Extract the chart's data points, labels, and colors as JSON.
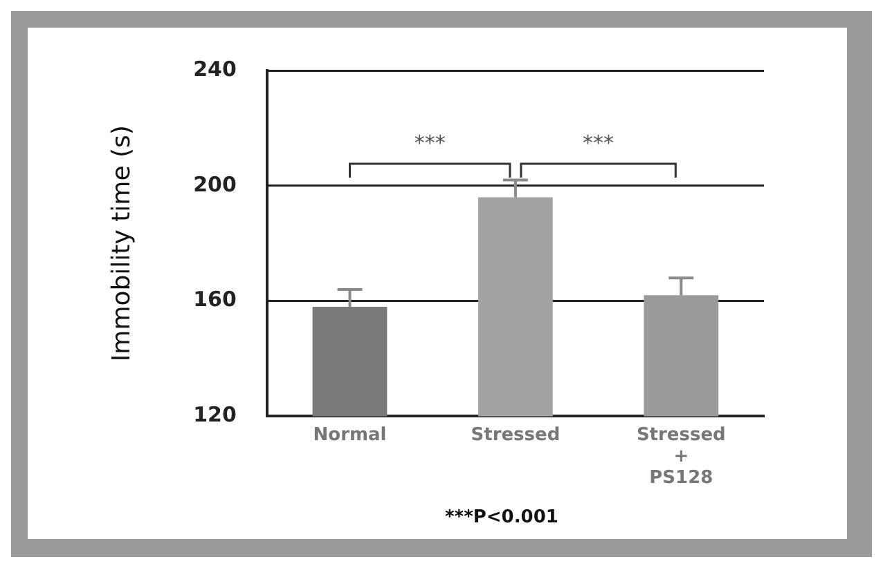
{
  "chart_data": {
    "type": "bar",
    "ylabel": "Immobility time (s)",
    "categories": [
      "Normal",
      "Stressed",
      "Stressed + PS128"
    ],
    "values": [
      158,
      196,
      162
    ],
    "colors": [
      "#7a7a7a",
      "#a3a3a3",
      "#9a9a9a"
    ],
    "errors": [
      6,
      6,
      6
    ],
    "ylim": [
      120,
      240
    ],
    "yticks": [
      120,
      160,
      200,
      240
    ],
    "grid": "y",
    "annotations": [
      "***",
      "***",
      "***P<0.001"
    ]
  }
}
